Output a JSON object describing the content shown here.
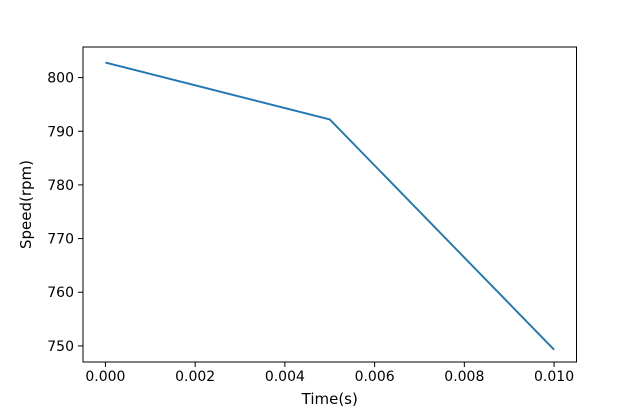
{
  "figure": {
    "background": "#ffffff"
  },
  "chart_data": {
    "type": "line",
    "title": "",
    "xlabel": "Time(s)",
    "ylabel": "Speed(rpm)",
    "x": [
      0.0,
      0.005,
      0.01
    ],
    "y": [
      802.8,
      792.2,
      749.3
    ],
    "series": [
      {
        "name": "speed",
        "x": [
          0.0,
          0.005,
          0.01
        ],
        "values": [
          802.8,
          792.2,
          749.3
        ]
      }
    ],
    "xlim": [
      -0.0005,
      0.0105
    ],
    "ylim": [
      747.0,
      805.7
    ],
    "xticks": {
      "values": [
        0.0,
        0.002,
        0.004,
        0.006,
        0.008,
        0.01
      ],
      "labels": [
        "0.000",
        "0.002",
        "0.004",
        "0.006",
        "0.008",
        "0.010"
      ]
    },
    "yticks": {
      "values": [
        750,
        760,
        770,
        780,
        790,
        800
      ],
      "labels": [
        "750",
        "760",
        "770",
        "780",
        "790",
        "800"
      ]
    },
    "grid": false,
    "legend": "none",
    "line_color": "#1f77b4",
    "line_width": 1.9,
    "spine_color": "#000000",
    "tick_color": "#000000",
    "background": "#ffffff"
  }
}
